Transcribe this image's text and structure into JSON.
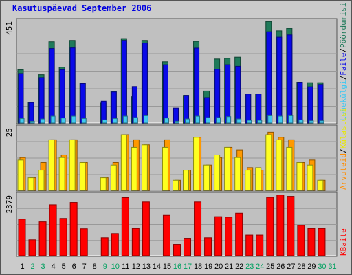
{
  "title": "Kasutuspäevad September 2006",
  "chart_data": [
    {
      "type": "bar",
      "title": "Kasutuspäevad September 2006",
      "ymax_label": "451",
      "ylim": [
        0,
        451
      ],
      "grid": true,
      "legend_right": [
        "Pöördumisi",
        "/",
        "Faile",
        "/",
        "Lehekülgi"
      ],
      "colors": {
        "visits": "#1f7a5a",
        "files": "#0a0ae8",
        "pages": "#40c8f0"
      },
      "categories": [
        "1",
        "2",
        "3",
        "4",
        "5",
        "6",
        "7",
        "8",
        "9",
        "10",
        "11",
        "12",
        "13",
        "14",
        "15",
        "16",
        "17",
        "18",
        "19",
        "20",
        "21",
        "22",
        "23",
        "24",
        "25",
        "26",
        "27",
        "28",
        "29",
        "30",
        "31"
      ],
      "weekend_days": [
        "2",
        "3",
        "9",
        "10",
        "16",
        "17",
        "23",
        "24",
        "30",
        "31"
      ],
      "series": [
        {
          "name": "Pöördumisi",
          "values": [
            235,
            90,
            213,
            358,
            246,
            364,
            174,
            0,
            88,
            140,
            372,
            116,
            364,
            0,
            270,
            60,
            122,
            360,
            141,
            282,
            285,
            290,
            128,
            128,
            447,
            406,
            417,
            180,
            178,
            178,
            0
          ]
        },
        {
          "name": "Faile",
          "values": [
            218,
            90,
            200,
            328,
            235,
            331,
            174,
            0,
            96,
            137,
            364,
            161,
            352,
            0,
            257,
            66,
            122,
            330,
            112,
            237,
            257,
            250,
            128,
            128,
            402,
            378,
            388,
            180,
            160,
            170,
            0
          ]
        },
        {
          "name": "Lehekülgi",
          "values": [
            20,
            8,
            18,
            30,
            22,
            30,
            20,
            0,
            14,
            20,
            30,
            24,
            32,
            0,
            22,
            8,
            18,
            30,
            24,
            24,
            28,
            18,
            12,
            12,
            32,
            30,
            32,
            14,
            10,
            10,
            0
          ]
        }
      ]
    },
    {
      "type": "bar",
      "ymax_label": "25",
      "ylim": [
        0,
        25
      ],
      "grid": true,
      "legend_right": [
        "Arvuteid",
        "/",
        "Külastusi"
      ],
      "colors": {
        "sites": "#ffff20",
        "visits": "#ff9900"
      },
      "categories": [
        "1",
        "2",
        "3",
        "4",
        "5",
        "6",
        "7",
        "8",
        "9",
        "10",
        "11",
        "12",
        "13",
        "14",
        "15",
        "16",
        "17",
        "18",
        "19",
        "20",
        "21",
        "22",
        "23",
        "24",
        "25",
        "26",
        "27",
        "28",
        "29",
        "30",
        "31"
      ],
      "series": [
        {
          "name": "Külastusi",
          "values": [
            13,
            5,
            11,
            20,
            14,
            20,
            11,
            0,
            5,
            11,
            22,
            20,
            18,
            0,
            20,
            4,
            8,
            21,
            10,
            13,
            17,
            16,
            9,
            8,
            23,
            21,
            20,
            11,
            12,
            4,
            0
          ]
        },
        {
          "name": "Arvuteid",
          "values": [
            12,
            5,
            8,
            20,
            13,
            20,
            11,
            0,
            5,
            10,
            22,
            17,
            18,
            0,
            17,
            4,
            8,
            21,
            10,
            14,
            17,
            13,
            8,
            9,
            22,
            20,
            17,
            11,
            10,
            4,
            0
          ]
        }
      ]
    },
    {
      "type": "bar",
      "ymax_label": "2379",
      "ylim": [
        0,
        2379
      ],
      "grid": true,
      "legend_right": [
        "KBaite"
      ],
      "colors": {
        "kbytes": "#ff0000"
      },
      "categories": [
        "1",
        "2",
        "3",
        "4",
        "5",
        "6",
        "7",
        "8",
        "9",
        "10",
        "11",
        "12",
        "13",
        "14",
        "15",
        "16",
        "17",
        "18",
        "19",
        "20",
        "21",
        "22",
        "23",
        "24",
        "25",
        "26",
        "27",
        "28",
        "29",
        "30",
        "31"
      ],
      "series": [
        {
          "name": "KBaite",
          "values": [
            1420,
            620,
            1320,
            1980,
            1450,
            2070,
            1050,
            0,
            700,
            860,
            2260,
            1060,
            2090,
            0,
            1570,
            440,
            680,
            2090,
            700,
            1520,
            1500,
            1650,
            800,
            800,
            2270,
            2360,
            2310,
            1180,
            1060,
            1060,
            0
          ]
        }
      ]
    }
  ]
}
